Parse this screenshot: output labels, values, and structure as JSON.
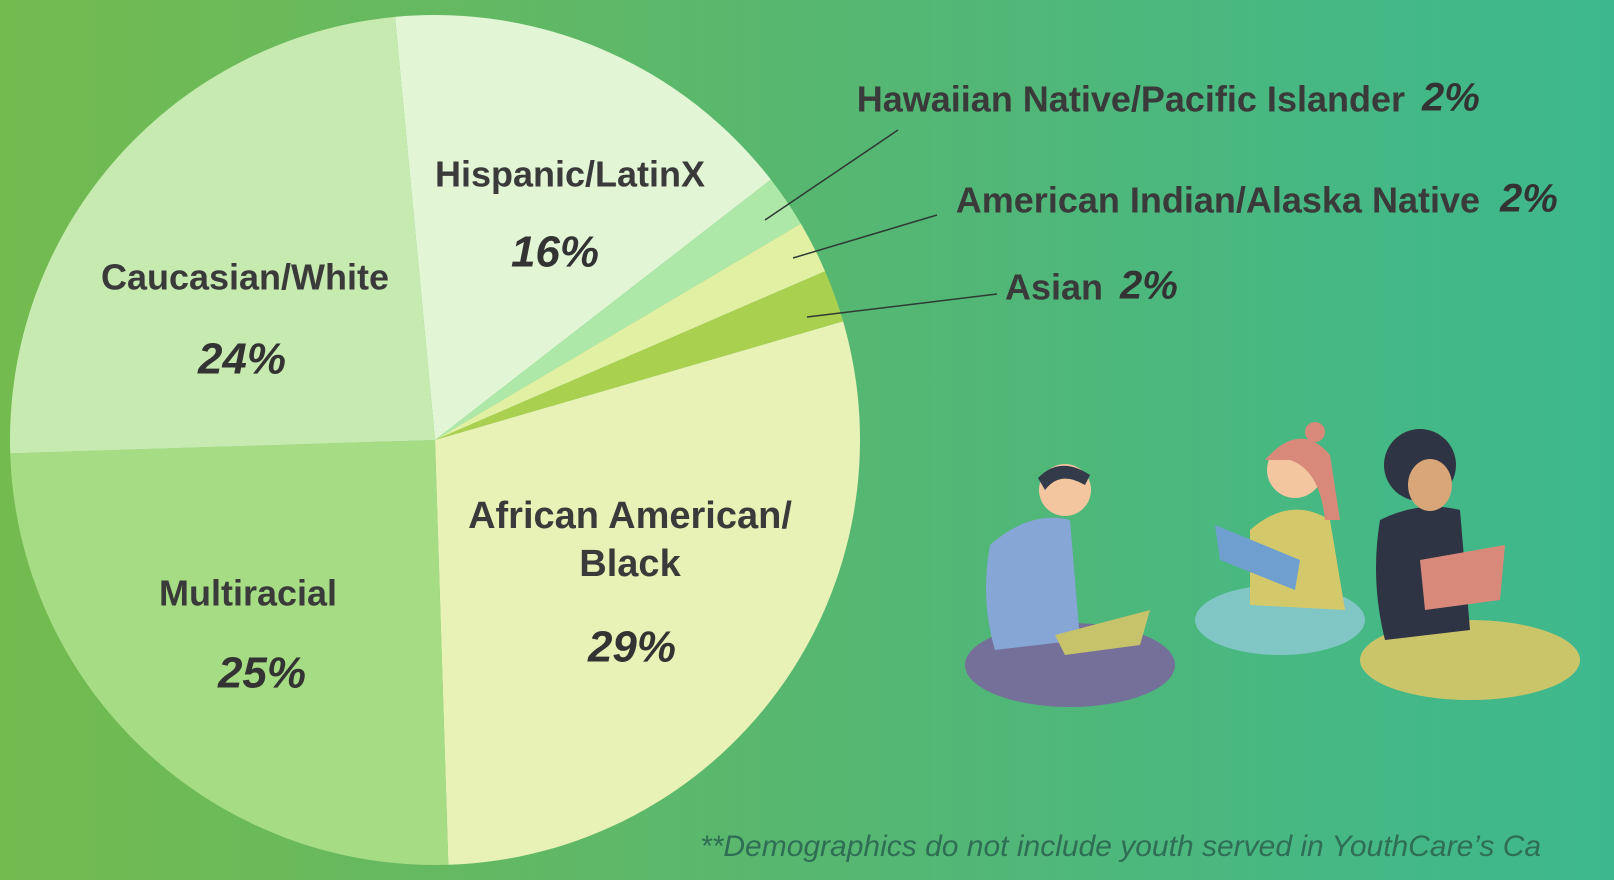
{
  "chart_data": {
    "type": "pie",
    "categories": [
      "Hispanic/LatinX",
      "Hawaiian Native/Pacific Islander",
      "American Indian/Alaska Native",
      "Asian",
      "African American/ Black",
      "Multiracial",
      "Caucasian/White"
    ],
    "values": [
      16,
      2,
      2,
      2,
      29,
      25,
      24
    ],
    "value_labels": [
      "16%",
      "2%",
      "2%",
      "2%",
      "29%",
      "25%",
      "24%"
    ],
    "colors": [
      "#e2f6d6",
      "#aee8a8",
      "#e2f0a4",
      "#a9d04e",
      "#e9f2b6",
      "#a6dc84",
      "#c6eab0"
    ],
    "footnote": "**Demographics do not include youth served in YouthCare’s Ca"
  }
}
